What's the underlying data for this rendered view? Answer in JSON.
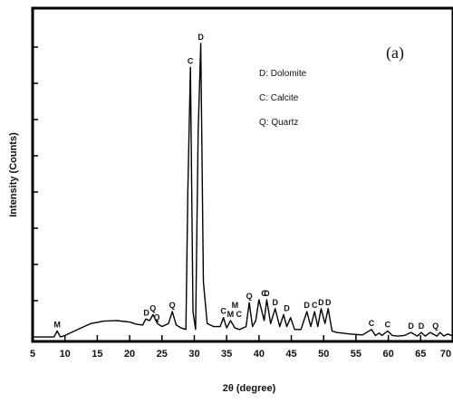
{
  "chart_data": {
    "type": "line",
    "panel_label": "(a)",
    "xlabel": "2θ (degree)",
    "ylabel": "Intensity (Counts)",
    "xlim": [
      5,
      70
    ],
    "ylim": [
      0,
      100
    ],
    "xticks": [
      5,
      10,
      15,
      20,
      25,
      30,
      35,
      40,
      45,
      50,
      55,
      60,
      65,
      70
    ],
    "xtick_labels": [
      "5",
      "10",
      "15",
      "20",
      "25",
      "30",
      "35",
      "40",
      "45",
      "50",
      "55",
      "60",
      "65",
      "70"
    ],
    "grid": false,
    "legend_position": "top-center",
    "legend": [
      "D: Dolomite",
      "C: Calcite",
      "Q: Quartz"
    ],
    "series": [
      {
        "x": [
          5,
          7,
          8.3,
          8.8,
          9.3,
          10,
          12,
          14,
          16,
          18,
          20,
          21,
          22,
          22.5,
          23.1,
          23.6,
          24.3,
          25,
          26,
          26.6,
          27.2,
          28,
          28.7,
          29.0,
          29.4,
          29.8,
          30.2,
          30.6,
          31.0,
          31.4,
          32,
          33,
          34,
          34.5,
          35,
          35.6,
          36.3,
          37,
          38,
          38.5,
          39.0,
          39.5,
          40,
          40.8,
          41.2,
          41.8,
          42.5,
          43.2,
          43.8,
          44.3,
          44.9,
          45.5,
          46.5,
          47.4,
          48.0,
          48.6,
          49.1,
          49.6,
          50.2,
          50.7,
          51.3,
          52,
          54,
          56,
          57.4,
          58,
          58.6,
          59,
          59.9,
          60.6,
          61.5,
          62.5,
          63.5,
          64.5,
          65.1,
          65.7,
          66.5,
          67.5,
          68,
          68.6,
          69.2,
          70
        ],
        "y": [
          1.5,
          1.5,
          1.5,
          3.5,
          1.5,
          2,
          4,
          6,
          6.8,
          7,
          6.5,
          5.8,
          5.5,
          7.5,
          7,
          9,
          6,
          5,
          6,
          10,
          5.5,
          4.5,
          4,
          50,
          92,
          10,
          4,
          70,
          100,
          20,
          6,
          5,
          5,
          8,
          4.5,
          7,
          4.5,
          4,
          5,
          13,
          5,
          7,
          14,
          7,
          14,
          6,
          11,
          5,
          9,
          5,
          8,
          4,
          4,
          10,
          5,
          10,
          5,
          11,
          6,
          11,
          3.5,
          3,
          2.5,
          2.2,
          4,
          2,
          2.8,
          2,
          3.5,
          2,
          1.8,
          2,
          3,
          1.8,
          3,
          1.8,
          3,
          1.8,
          3,
          1.8,
          2.5,
          1.8
        ]
      }
    ],
    "peak_labels": [
      {
        "text": "M",
        "x": 8.8,
        "y": 3.5
      },
      {
        "text": "D",
        "x": 22.6,
        "y": 7.5
      },
      {
        "text": "Q",
        "x": 23.6,
        "y": 9
      },
      {
        "text": "Q",
        "x": 24.2,
        "y": 6
      },
      {
        "text": "Q",
        "x": 26.6,
        "y": 10
      },
      {
        "text": "C",
        "x": 29.4,
        "y": 92
      },
      {
        "text": "D",
        "x": 31.0,
        "y": 100
      },
      {
        "text": "C",
        "x": 34.5,
        "y": 8
      },
      {
        "text": "M",
        "x": 35.6,
        "y": 7
      },
      {
        "text": "M",
        "x": 36.3,
        "y": 10
      },
      {
        "text": "C",
        "x": 36.9,
        "y": 7
      },
      {
        "text": "Q",
        "x": 38.5,
        "y": 13
      },
      {
        "text": "C",
        "x": 40.8,
        "y": 14
      },
      {
        "text": "D",
        "x": 41.2,
        "y": 14
      },
      {
        "text": "D",
        "x": 42.5,
        "y": 11
      },
      {
        "text": "D",
        "x": 44.3,
        "y": 9
      },
      {
        "text": "D",
        "x": 47.4,
        "y": 10
      },
      {
        "text": "C",
        "x": 48.6,
        "y": 10
      },
      {
        "text": "D",
        "x": 49.6,
        "y": 11
      },
      {
        "text": "D",
        "x": 50.7,
        "y": 11
      },
      {
        "text": "C",
        "x": 57.4,
        "y": 4
      },
      {
        "text": "C",
        "x": 59.9,
        "y": 3.5
      },
      {
        "text": "D",
        "x": 63.5,
        "y": 3
      },
      {
        "text": "D",
        "x": 65.1,
        "y": 3
      },
      {
        "text": "Q",
        "x": 67.3,
        "y": 3
      }
    ]
  }
}
